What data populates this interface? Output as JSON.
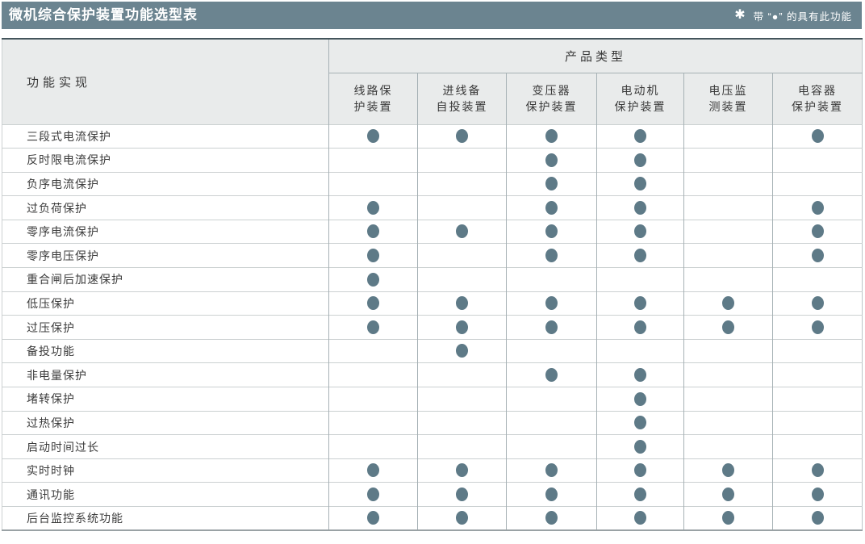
{
  "colors": {
    "title_bar_bg": "#6b8490",
    "dot": "#5e7a87",
    "header_bg": "#e9ebeb",
    "table_top_border": "#44555c"
  },
  "title_bar": {
    "title": "微机综合保护装置功能选型表",
    "star": "✱",
    "note": "带 “●” 的具有此功能"
  },
  "table": {
    "row_header_label": "功能实现",
    "group_header": "产品类型",
    "dot_symbol": "●",
    "columns": [
      "线路保\n护装置",
      "进线备\n自投装置",
      "变压器\n保护装置",
      "电动机\n保护装置",
      "电压监\n测装置",
      "电容器\n保护装置"
    ],
    "rows": [
      {
        "label": "三段式电流保护",
        "marks": [
          1,
          1,
          1,
          1,
          0,
          1
        ]
      },
      {
        "label": "反时限电流保护",
        "marks": [
          0,
          0,
          1,
          1,
          0,
          0
        ]
      },
      {
        "label": "负序电流保护",
        "marks": [
          0,
          0,
          1,
          1,
          0,
          0
        ]
      },
      {
        "label": "过负荷保护",
        "marks": [
          1,
          0,
          1,
          1,
          0,
          1
        ]
      },
      {
        "label": "零序电流保护",
        "marks": [
          1,
          1,
          1,
          1,
          0,
          1
        ]
      },
      {
        "label": "零序电压保护",
        "marks": [
          1,
          0,
          1,
          1,
          0,
          1
        ]
      },
      {
        "label": "重合闸后加速保护",
        "marks": [
          1,
          0,
          0,
          0,
          0,
          0
        ]
      },
      {
        "label": "低压保护",
        "marks": [
          1,
          1,
          1,
          1,
          1,
          1
        ]
      },
      {
        "label": "过压保护",
        "marks": [
          1,
          1,
          1,
          1,
          1,
          1
        ]
      },
      {
        "label": "备投功能",
        "marks": [
          0,
          1,
          0,
          0,
          0,
          0
        ]
      },
      {
        "label": "非电量保护",
        "marks": [
          0,
          0,
          1,
          1,
          0,
          0
        ]
      },
      {
        "label": "堵转保护",
        "marks": [
          0,
          0,
          0,
          1,
          0,
          0
        ]
      },
      {
        "label": "过热保护",
        "marks": [
          0,
          0,
          0,
          1,
          0,
          0
        ]
      },
      {
        "label": "启动时间过长",
        "marks": [
          0,
          0,
          0,
          1,
          0,
          0
        ]
      },
      {
        "label": "实时时钟",
        "marks": [
          1,
          1,
          1,
          1,
          1,
          1
        ]
      },
      {
        "label": "通讯功能",
        "marks": [
          1,
          1,
          1,
          1,
          1,
          1
        ]
      },
      {
        "label": "后台监控系统功能",
        "marks": [
          1,
          1,
          1,
          1,
          1,
          1
        ]
      }
    ]
  }
}
